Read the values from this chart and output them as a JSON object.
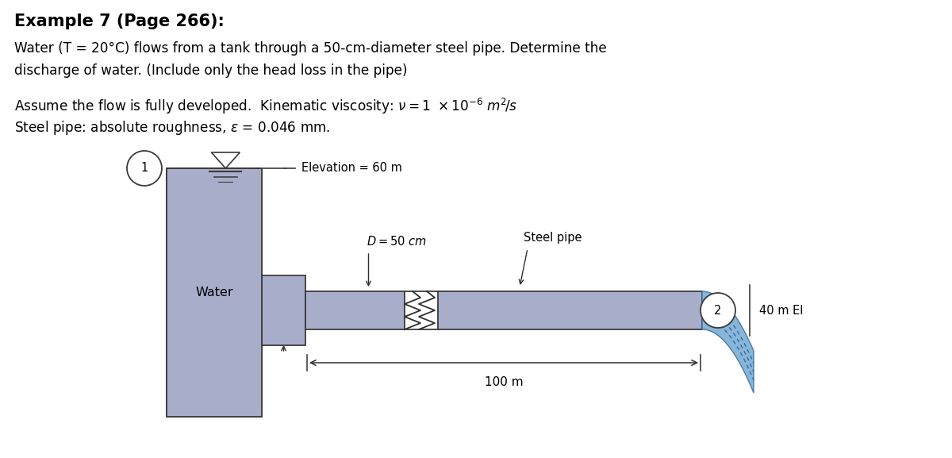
{
  "title": "Example 7 (Page 266):",
  "line1": "Water (T = 20°C) flows from a tank through a 50-cm-diameter steel pipe. Determine the",
  "line2": "discharge of water. (Include only the head loss in the pipe)",
  "line3_prefix": "Assume the flow is fully developed.  Kinematic viscosity: ",
  "line3_math": "$\\nu = 1\\ \\times 10^{-6}\\ m^2\\!/s$",
  "line4": "Steel pipe: absolute roughness, ε = 0.046 mm.",
  "tank_color": "#a8aeca",
  "pipe_color": "#a8aeca",
  "water_jet_color": "#6090c8",
  "bg_color": "#ffffff",
  "elevation_label": "Elevation = 60 m",
  "water_label": "Water",
  "D_label": "$D = 50$ cm",
  "steel_pipe_label": "Steel pipe",
  "el_label": "40 m El",
  "dist_label": "100 m",
  "fig_width": 12.0,
  "fig_height": 5.77,
  "dpi": 100
}
